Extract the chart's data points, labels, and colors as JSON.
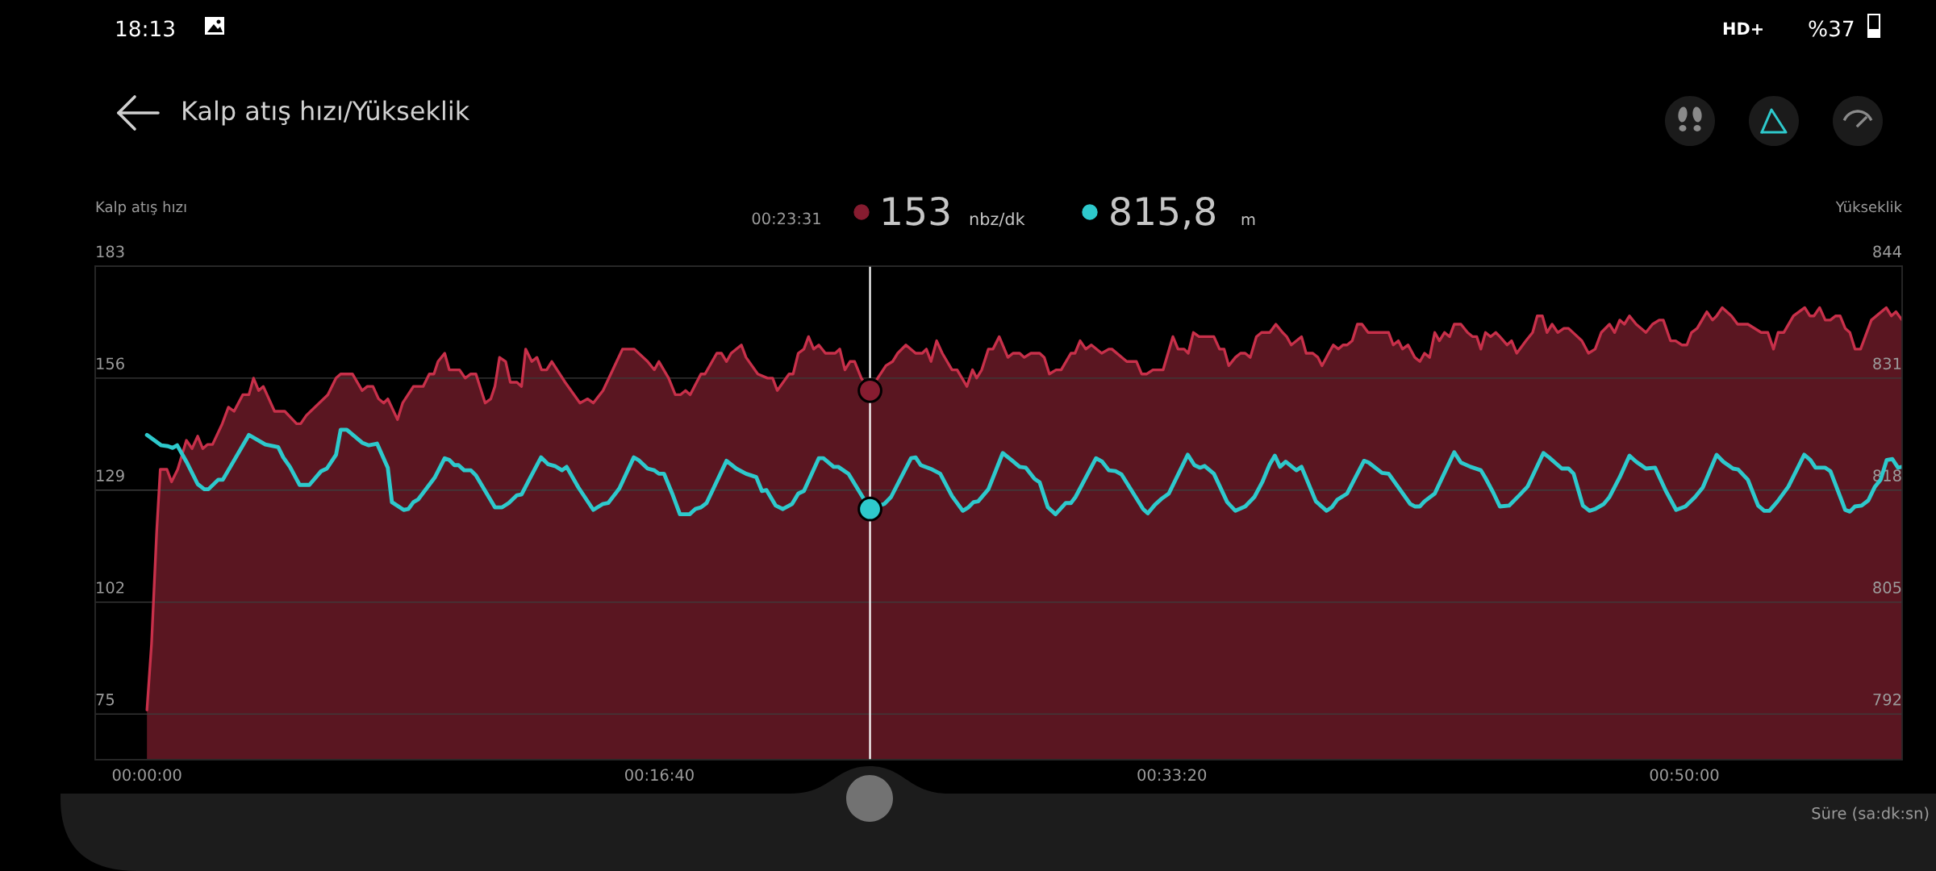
{
  "chart_data": {
    "type": "area",
    "title": "Kalp atış hızı/Yükseklik",
    "ylabel": "Kalp atış hızı",
    "y2label": "Yükseklik",
    "xlabel": "Süre (sa:dk:sn)",
    "xlim": [
      -101,
      3425
    ],
    "xticks": [
      {
        "value": 0,
        "label": "00:00:00"
      },
      {
        "value": 1000,
        "label": "00:16:40"
      },
      {
        "value": 2000,
        "label": "00:33:20"
      },
      {
        "value": 3000,
        "label": "00:50:00"
      }
    ],
    "ylim": [
      64,
      183
    ],
    "yticks": [
      75,
      102,
      129,
      156,
      183
    ],
    "y2lim": [
      786.7,
      844
    ],
    "y2ticks": [
      792,
      805,
      818,
      831,
      844
    ],
    "grid": "y",
    "series": [
      {
        "color": "#c8304a",
        "x": [
          0,
          9,
          19,
          26,
          39,
          48,
          60,
          77,
          88,
          99,
          109,
          118,
          128,
          147,
          159,
          170,
          187,
          199,
          208,
          218,
          227,
          249,
          269,
          292,
          300,
          311,
          353,
          369,
          378,
          401,
          420,
          430,
          441,
          452,
          462,
          470,
          489,
          499,
          520,
          539,
          551,
          560,
          568,
          581,
          590,
          610,
          621,
          632,
          642,
          660,
          671,
          679,
          688,
          700,
          709,
          722,
          731,
          739,
          751,
          761,
          770,
          780,
          790,
          816,
          845,
          860,
          871,
          890,
          928,
          951,
          977,
          990,
          999,
          1018,
          1031,
          1041,
          1051,
          1060,
          1081,
          1089,
          1112,
          1121,
          1131,
          1140,
          1160,
          1169,
          1192,
          1211,
          1221,
          1230,
          1253,
          1261,
          1271,
          1282,
          1291,
          1301,
          1311,
          1324,
          1343,
          1352,
          1362,
          1372,
          1381,
          1394,
          1411,
          1426,
          1442,
          1455,
          1465,
          1481,
          1500,
          1513,
          1521,
          1530,
          1541,
          1552,
          1571,
          1581,
          1600,
          1611,
          1619,
          1629,
          1642,
          1651,
          1663,
          1680,
          1690,
          1703,
          1712,
          1725,
          1742,
          1751,
          1761,
          1774,
          1784,
          1803,
          1811,
          1821,
          1832,
          1843,
          1863,
          1877,
          1883,
          1912,
          1931,
          1941,
          1951,
          1963,
          1983,
          2002,
          2012,
          2024,
          2032,
          2042,
          2053,
          2082,
          2093,
          2102,
          2111,
          2124,
          2134,
          2143,
          2153,
          2165,
          2175,
          2191,
          2203,
          2216,
          2224,
          2233,
          2253,
          2262,
          2275,
          2285,
          2293,
          2306,
          2315,
          2325,
          2334,
          2342,
          2352,
          2362,
          2371,
          2383,
          2423,
          2432,
          2442,
          2450,
          2461,
          2474,
          2484,
          2493,
          2503,
          2513,
          2522,
          2532,
          2542,
          2551,
          2564,
          2577,
          2587,
          2595,
          2603,
          2612,
          2622,
          2632,
          2640,
          2654,
          2663,
          2673,
          2691,
          2704,
          2713,
          2723,
          2732,
          2742,
          2753,
          2765,
          2774,
          2800,
          2813,
          2826,
          2838,
          2854,
          2864,
          2874,
          2883,
          2893,
          2906,
          2925,
          2938,
          2951,
          2959,
          2973,
          2983,
          2995,
          3005,
          3014,
          3025,
          3044,
          3055,
          3063,
          3074,
          3092,
          3104,
          3124,
          3150,
          3163,
          3174,
          3183,
          3194,
          3213,
          3235,
          3245,
          3253,
          3264,
          3275,
          3285,
          3295,
          3304,
          3314,
          3323,
          3333,
          3344,
          3365,
          3394,
          3404,
          3413,
          3425
        ],
        "values": [
          76,
          92,
          119,
          134,
          134,
          131,
          134,
          141,
          139,
          142,
          139,
          140,
          140,
          145,
          149,
          148,
          152,
          152,
          156,
          153,
          154,
          148,
          148,
          145,
          145,
          147,
          152,
          156,
          157,
          157,
          153,
          154,
          154,
          151,
          150,
          151,
          146,
          150,
          154,
          154,
          157,
          157,
          160,
          162,
          158,
          158,
          156,
          157,
          157,
          150,
          151,
          154,
          161,
          160,
          155,
          155,
          154,
          163,
          160,
          161,
          158,
          158,
          160,
          155,
          150,
          151,
          150,
          153,
          163,
          163,
          160,
          158,
          160,
          156,
          152,
          152,
          153,
          152,
          157,
          157,
          162,
          162,
          160,
          162,
          164,
          161,
          157,
          156,
          156,
          153,
          157,
          157,
          162,
          163,
          166,
          163,
          164,
          162,
          162,
          163,
          158,
          160,
          160,
          156,
          153,
          156,
          159,
          160,
          162,
          164,
          162,
          162,
          163,
          160,
          165,
          162,
          158,
          158,
          154,
          158,
          156,
          158,
          163,
          163,
          166,
          161,
          162,
          162,
          161,
          162,
          162,
          161,
          157,
          158,
          158,
          162,
          162,
          165,
          163,
          164,
          162,
          163,
          163,
          160,
          160,
          157,
          157,
          158,
          158,
          166,
          163,
          163,
          162,
          167,
          166,
          166,
          163,
          163,
          159,
          161,
          162,
          162,
          161,
          166,
          167,
          167,
          169,
          167,
          166,
          164,
          166,
          162,
          162,
          161,
          159,
          162,
          164,
          163,
          164,
          164,
          165,
          169,
          169,
          167,
          167,
          164,
          165,
          163,
          164,
          161,
          160,
          162,
          161,
          167,
          165,
          167,
          166,
          169,
          169,
          167,
          166,
          166,
          163,
          167,
          166,
          167,
          166,
          164,
          165,
          162,
          165,
          167,
          171,
          171,
          167,
          169,
          167,
          168,
          168,
          165,
          162,
          163,
          167,
          169,
          167,
          170,
          169,
          171,
          169,
          167,
          169,
          170,
          170,
          165,
          165,
          164,
          164,
          167,
          168,
          172,
          170,
          171,
          173,
          171,
          169,
          169,
          167,
          167,
          163,
          167,
          167,
          171,
          173,
          171,
          171,
          173,
          170,
          170,
          171,
          171,
          168,
          167,
          163,
          163,
          170,
          173,
          171,
          172,
          170
        ]
      },
      {
        "type": "line",
        "axis": "y2",
        "color": "#2ec9cc",
        "x": [
          0,
          28,
          41,
          50,
          59,
          77,
          99,
          112,
          120,
          139,
          148,
          199,
          208,
          231,
          256,
          266,
          279,
          298,
          317,
          340,
          351,
          369,
          378,
          390,
          420,
          433,
          449,
          470,
          478,
          501,
          510,
          520,
          529,
          562,
          581,
          590,
          600,
          608,
          619,
          632,
          642,
          679,
          693,
          706,
          722,
          731,
          745,
          769,
          783,
          796,
          810,
          819,
          842,
          871,
          890,
          900,
          922,
          950,
          959,
          977,
          990,
          999,
          1009,
          1025,
          1040,
          1059,
          1070,
          1081,
          1092,
          1131,
          1150,
          1169,
          1189,
          1200,
          1209,
          1227,
          1241,
          1259,
          1271,
          1282,
          1311,
          1320,
          1340,
          1349,
          1369,
          1411,
          1439,
          1452,
          1491,
          1500,
          1510,
          1532,
          1548,
          1571,
          1592,
          1603,
          1613,
          1622,
          1642,
          1670,
          1687,
          1703,
          1715,
          1732,
          1742,
          1758,
          1773,
          1793,
          1803,
          1812,
          1852,
          1864,
          1877,
          1890,
          1902,
          1944,
          1953,
          1967,
          1980,
          1994,
          2031,
          2044,
          2055,
          2064,
          2082,
          2108,
          2124,
          2143,
          2161,
          2177,
          2191,
          2201,
          2211,
          2222,
          2243,
          2253,
          2281,
          2302,
          2312,
          2323,
          2342,
          2375,
          2384,
          2410,
          2423,
          2465,
          2474,
          2484,
          2493,
          2513,
          2551,
          2564,
          2583,
          2603,
          2612,
          2628,
          2640,
          2658,
          2678,
          2694,
          2725,
          2736,
          2761,
          2774,
          2784,
          2802,
          2815,
          2826,
          2843,
          2854,
          2874,
          2893,
          2906,
          2925,
          2943,
          2964,
          2984,
          3002,
          3021,
          3036,
          3063,
          3076,
          3095,
          3105,
          3124,
          3144,
          3156,
          3166,
          3182,
          3203,
          3234,
          3246,
          3256,
          3275,
          3285,
          3314,
          3323,
          3333,
          3346,
          3359,
          3372,
          3383,
          3395,
          3406,
          3417,
          3425
        ],
        "values": [
          824.4,
          823.2,
          823.1,
          822.9,
          823.2,
          821.3,
          818.7,
          818.1,
          818.1,
          819.2,
          819.2,
          824.4,
          824.1,
          823.3,
          823.0,
          821.8,
          820.7,
          818.6,
          818.6,
          820.2,
          820.5,
          822.1,
          825.0,
          825.0,
          823.5,
          823.2,
          823.4,
          820.6,
          816.6,
          815.7,
          815.8,
          816.6,
          816.9,
          819.5,
          821.7,
          821.5,
          820.9,
          820.9,
          820.3,
          820.3,
          819.7,
          816.0,
          816.0,
          816.5,
          817.4,
          817.5,
          819.1,
          821.8,
          821.0,
          820.8,
          820.3,
          820.7,
          818.3,
          815.7,
          816.4,
          816.5,
          818.2,
          821.8,
          821.5,
          820.5,
          820.3,
          819.9,
          819.9,
          817.6,
          815.2,
          815.2,
          815.8,
          816.0,
          816.5,
          821.4,
          820.5,
          819.9,
          819.5,
          817.9,
          818.0,
          816.2,
          815.8,
          816.4,
          817.6,
          817.9,
          821.7,
          821.7,
          820.7,
          820.7,
          819.9,
          815.8,
          816.4,
          817.2,
          821.7,
          821.8,
          820.9,
          820.4,
          819.9,
          817.3,
          815.6,
          816.0,
          816.6,
          816.7,
          818.1,
          822.3,
          821.5,
          820.7,
          820.6,
          819.3,
          818.9,
          816.0,
          815.2,
          816.5,
          816.5,
          817.2,
          821.7,
          821.3,
          820.3,
          820.2,
          819.8,
          815.8,
          815.3,
          816.3,
          817.0,
          817.6,
          822.1,
          820.9,
          820.6,
          820.8,
          819.9,
          816.6,
          815.6,
          816.1,
          817.2,
          819.0,
          821.0,
          822.0,
          820.7,
          821.3,
          820.3,
          820.7,
          816.7,
          815.6,
          816.0,
          816.9,
          817.6,
          821.4,
          821.2,
          820.0,
          819.9,
          816.4,
          816.1,
          816.1,
          816.7,
          817.6,
          822.4,
          821.2,
          820.7,
          820.3,
          819.4,
          817.6,
          816.1,
          816.2,
          817.4,
          818.4,
          822.3,
          821.8,
          820.5,
          820.5,
          819.9,
          816.2,
          815.6,
          815.8,
          816.4,
          817.2,
          819.5,
          822.0,
          821.3,
          820.5,
          820.6,
          817.9,
          815.7,
          816.1,
          817.2,
          818.3,
          822.1,
          821.3,
          820.5,
          820.4,
          819.2,
          816.2,
          815.6,
          815.6,
          816.7,
          818.4,
          822.1,
          821.5,
          820.6,
          820.6,
          820.2,
          815.7,
          815.5,
          816.1,
          816.2,
          816.8,
          818.4,
          819.2,
          821.5,
          821.6,
          820.6,
          820.7
        ]
      },
      {
        "type": "scatter",
        "marker": "circle",
        "color": "#861c30",
        "x": [
          1411
        ],
        "values": [
          153
        ]
      },
      {
        "type": "scatter",
        "marker": "circle",
        "axis": "y2",
        "color": "#2ec9cc",
        "x": [
          1411
        ],
        "values": [
          815.8
        ]
      }
    ],
    "ref_lines": [
      {
        "axis": "x",
        "value": 1411,
        "color": "#ffffff"
      }
    ],
    "annotations": [
      "18:13",
      "HD+",
      "%37",
      "00:23:31",
      "153",
      "nbz/dk",
      "815,8",
      "m"
    ]
  }
}
